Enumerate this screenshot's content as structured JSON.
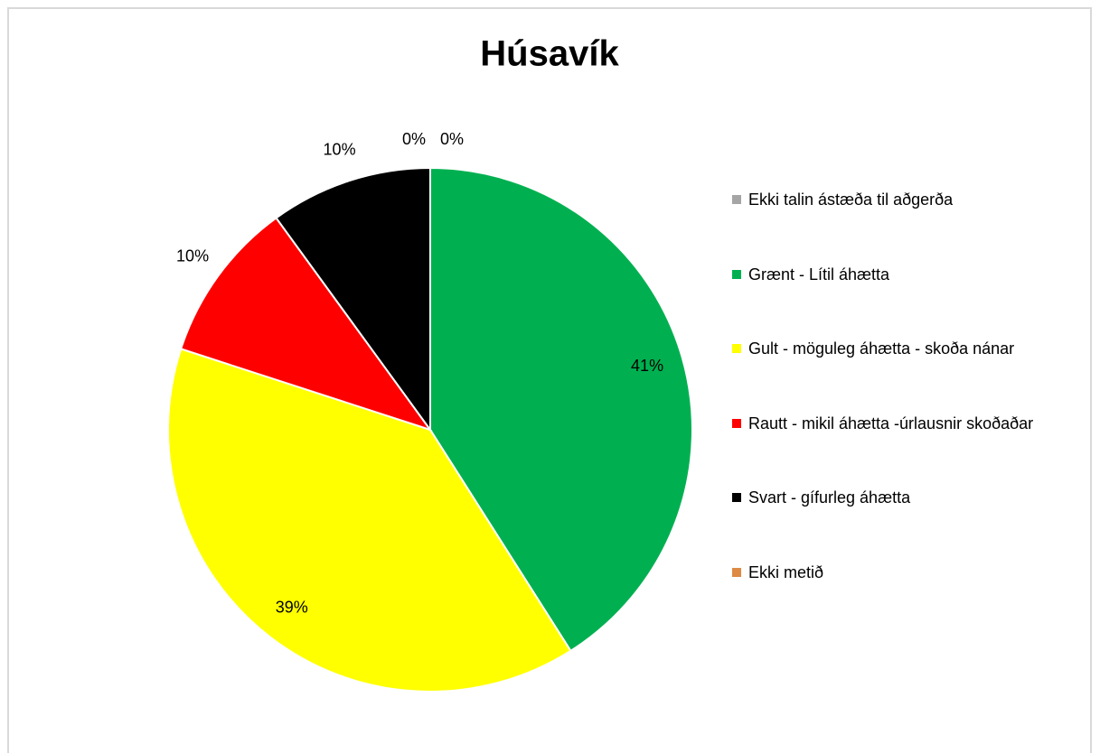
{
  "chart_data": {
    "type": "pie",
    "title": "Húsavík",
    "categories": [
      "Ekki talin ástæða til aðgerða",
      "Grænt - Lítil áhætta",
      "Gult - möguleg áhætta - skoða nánar",
      "Rautt - mikil áhætta -úrlausnir skoðaðar",
      "Svart - gífurleg áhætta",
      "Ekki metið"
    ],
    "values": [
      0,
      41,
      39,
      10,
      10,
      0
    ],
    "value_labels": [
      "0%",
      "41%",
      "39%",
      "10%",
      "10%",
      "0%"
    ],
    "colors": [
      "#a5a5a5",
      "#00b050",
      "#ffff00",
      "#ff0000",
      "#000000",
      "#dd8a45"
    ],
    "legend": "right"
  }
}
